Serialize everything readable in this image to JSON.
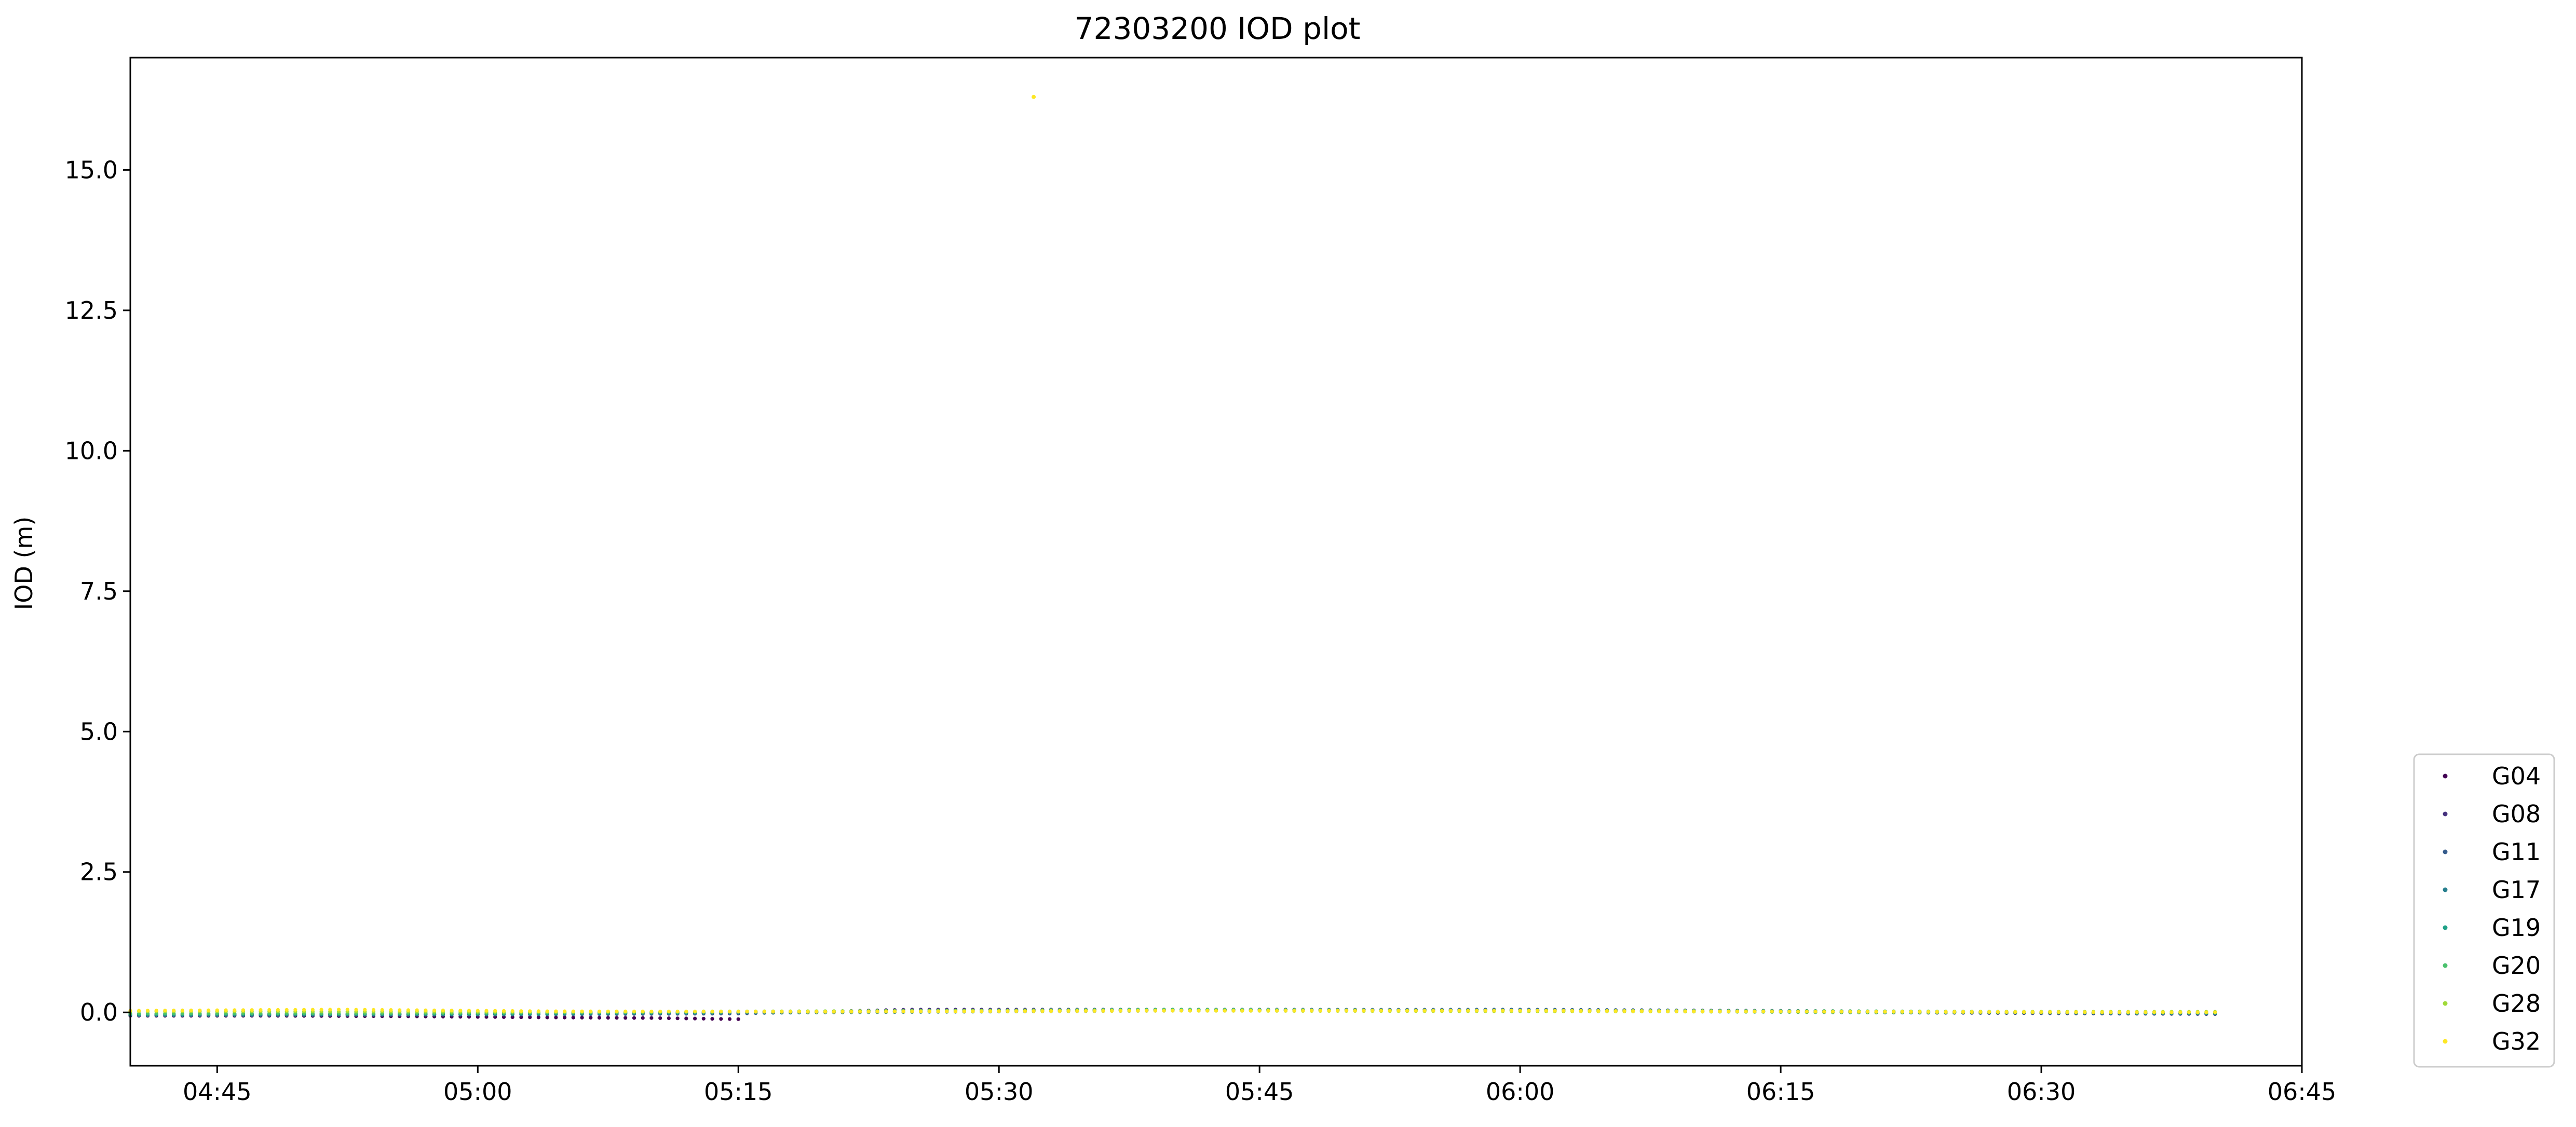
{
  "chart_data": {
    "type": "scatter",
    "title": "72303200 IOD plot",
    "xlabel": "",
    "ylabel": "IOD (m)",
    "xlim": [
      "04:40",
      "06:45"
    ],
    "ylim": [
      -0.95,
      17.0
    ],
    "x_ticks": [
      "04:45",
      "05:00",
      "05:15",
      "05:30",
      "05:45",
      "06:00",
      "06:15",
      "06:30",
      "06:45"
    ],
    "y_ticks": [
      "0.0",
      "2.5",
      "5.0",
      "7.5",
      "10.0",
      "12.5",
      "15.0"
    ],
    "grid": false,
    "legend_position": "lower-right, outside plot area",
    "sampling_interval": "00:00:30",
    "series": [
      {
        "name": "G04",
        "color": "#440154",
        "start": "04:40",
        "end": "05:15",
        "points": [
          [
            "04:40",
            -0.06
          ],
          [
            "04:48",
            -0.06
          ],
          [
            "04:56",
            -0.07
          ],
          [
            "05:04",
            -0.09
          ],
          [
            "05:10",
            -0.1
          ],
          [
            "05:15",
            -0.12
          ]
        ]
      },
      {
        "name": "G08",
        "color": "#46327e",
        "start": "04:40",
        "end": "06:40",
        "points": [
          [
            "04:40",
            -0.03
          ],
          [
            "05:00",
            -0.04
          ],
          [
            "05:15",
            -0.02
          ],
          [
            "05:25",
            0.05
          ],
          [
            "05:45",
            0.05
          ],
          [
            "06:00",
            0.04
          ],
          [
            "06:20",
            0.0
          ],
          [
            "06:40",
            -0.03
          ]
        ]
      },
      {
        "name": "G11",
        "color": "#365c8d",
        "start": "04:40",
        "end": "06:40",
        "points": [
          [
            "04:40",
            -0.04
          ],
          [
            "05:00",
            -0.03
          ],
          [
            "05:20",
            0.01
          ],
          [
            "05:40",
            0.04
          ],
          [
            "06:00",
            0.05
          ],
          [
            "06:20",
            0.02
          ],
          [
            "06:40",
            -0.02
          ]
        ]
      },
      {
        "name": "G17",
        "color": "#277f8e",
        "start": "04:40",
        "end": "06:40",
        "points": [
          [
            "04:40",
            -0.05
          ],
          [
            "05:00",
            -0.04
          ],
          [
            "05:20",
            0.0
          ],
          [
            "05:40",
            0.03
          ],
          [
            "06:00",
            0.04
          ],
          [
            "06:20",
            0.01
          ],
          [
            "06:40",
            -0.02
          ]
        ]
      },
      {
        "name": "G19",
        "color": "#1fa187",
        "start": "04:40",
        "end": "06:40",
        "points": [
          [
            "04:40",
            -0.03
          ],
          [
            "05:00",
            -0.02
          ],
          [
            "05:20",
            0.02
          ],
          [
            "05:40",
            0.04
          ],
          [
            "06:00",
            0.03
          ],
          [
            "06:20",
            0.0
          ],
          [
            "06:40",
            -0.01
          ]
        ]
      },
      {
        "name": "G20",
        "color": "#4ac16d",
        "start": "04:40",
        "end": "06:40",
        "points": [
          [
            "04:40",
            -0.02
          ],
          [
            "05:00",
            -0.01
          ],
          [
            "05:20",
            0.02
          ],
          [
            "05:40",
            0.05
          ],
          [
            "06:00",
            0.03
          ],
          [
            "06:20",
            0.02
          ],
          [
            "06:40",
            0.0
          ]
        ]
      },
      {
        "name": "G28",
        "color": "#a0da39",
        "start": "04:40",
        "end": "06:40",
        "points": [
          [
            "04:40",
            0.02
          ],
          [
            "05:00",
            0.01
          ],
          [
            "05:20",
            0.02
          ],
          [
            "05:40",
            0.03
          ],
          [
            "06:00",
            0.02
          ],
          [
            "06:20",
            0.01
          ],
          [
            "06:40",
            0.01
          ]
        ]
      },
      {
        "name": "G32",
        "color": "#fde725",
        "start": "04:40",
        "end": "06:40",
        "points": [
          [
            "04:40",
            0.03
          ],
          [
            "04:52",
            0.05
          ],
          [
            "05:04",
            0.02
          ],
          [
            "05:20",
            0.01
          ],
          [
            "05:40",
            0.03
          ],
          [
            "06:00",
            0.03
          ],
          [
            "06:20",
            0.01
          ],
          [
            "06:40",
            0.0
          ]
        ],
        "outliers": [
          [
            "05:32",
            16.3
          ]
        ]
      }
    ]
  }
}
